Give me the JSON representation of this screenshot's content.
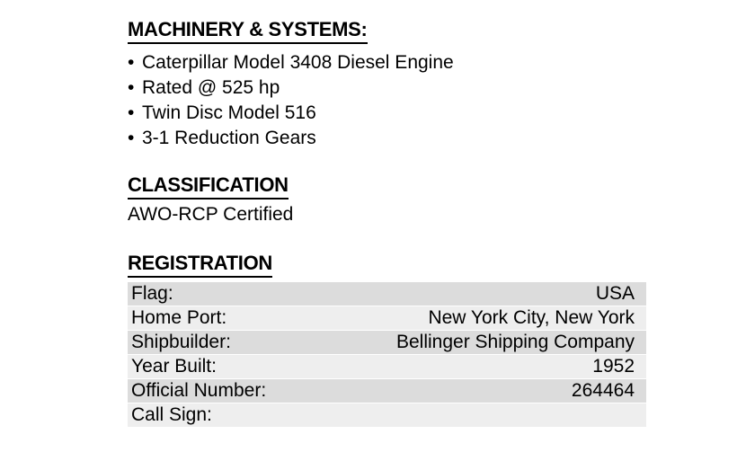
{
  "machinery": {
    "heading": "MACHINERY & SYSTEMS:",
    "bullet": "•",
    "items": [
      "Caterpillar Model 3408 Diesel Engine",
      "Rated @ 525 hp",
      "Twin Disc Model 516",
      "3-1 Reduction Gears"
    ]
  },
  "classification": {
    "heading": "CLASSIFICATION",
    "text": "AWO-RCP Certified"
  },
  "registration": {
    "heading": "REGISTRATION",
    "rows": [
      {
        "label": "Flag:",
        "value": "USA"
      },
      {
        "label": "Home Port:",
        "value": "New York City, New York"
      },
      {
        "label": "Shipbuilder:",
        "value": "Bellinger Shipping Company"
      },
      {
        "label": "Year Built:",
        "value": "1952"
      },
      {
        "label": "Official Number:",
        "value": "264464"
      },
      {
        "label": "Call Sign:",
        "value": ""
      }
    ]
  },
  "colors": {
    "text": "#000000",
    "background": "#ffffff",
    "table_row_dark": "#dcdcdc",
    "table_row_light": "#eeeeee"
  }
}
